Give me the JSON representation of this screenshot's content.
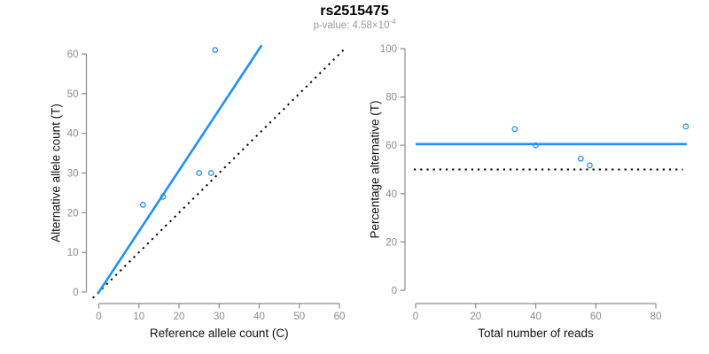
{
  "header": {
    "title": "rs2515475",
    "pvalue_label": "p-value: 4.58×10",
    "pvalue_exponent": "-4"
  },
  "colors": {
    "accent_blue": "#1E90FF",
    "dotted_black": "#000000",
    "axis_gray": "#8C8C8C",
    "tick_label_gray": "#8C8C8C",
    "axis_title_color": "#111111",
    "subtitle_gray": "#9B9B9B",
    "background": "#FFFFFF"
  },
  "chart_data": [
    {
      "type": "scatter",
      "title": "",
      "xlabel": "Reference allele count (C)",
      "ylabel": "Alternative allele count (T)",
      "xlim": [
        0,
        60
      ],
      "ylim": [
        0,
        61
      ],
      "xticks": [
        0,
        10,
        20,
        30,
        40,
        50,
        60
      ],
      "yticks": [
        0,
        10,
        20,
        30,
        40,
        50,
        60
      ],
      "grid": false,
      "legend": null,
      "points": [
        {
          "x": 11,
          "y": 22
        },
        {
          "x": 16,
          "y": 24
        },
        {
          "x": 25,
          "y": 30
        },
        {
          "x": 28,
          "y": 30
        },
        {
          "x": 29,
          "y": 61
        }
      ],
      "lines": [
        {
          "name": "identity-line",
          "slope": 1,
          "intercept": 0,
          "style": "dotted",
          "color": "#000000",
          "x_range": [
            -1.5,
            61
          ]
        },
        {
          "name": "fit-line",
          "slope": 1.532,
          "intercept": 0,
          "style": "solid",
          "color": "#1E90FF",
          "x_range": [
            -0.3,
            40.6
          ]
        }
      ]
    },
    {
      "type": "scatter",
      "title": "",
      "xlabel": "Total number of reads",
      "ylabel": "Percentage alternative (T)",
      "xlim": [
        0,
        90
      ],
      "ylim": [
        0,
        100
      ],
      "xticks": [
        0,
        20,
        40,
        60,
        80
      ],
      "yticks": [
        0,
        20,
        40,
        60,
        80,
        100
      ],
      "grid": false,
      "legend": null,
      "points": [
        {
          "x": 33,
          "y": 66.7
        },
        {
          "x": 40,
          "y": 60
        },
        {
          "x": 55,
          "y": 54.5
        },
        {
          "x": 58,
          "y": 51.7
        },
        {
          "x": 90,
          "y": 67.8
        }
      ],
      "lines": [
        {
          "name": "null-line",
          "slope": 0,
          "intercept": 50,
          "style": "dotted",
          "color": "#000000",
          "x_range": [
            -0.6,
            89
          ]
        },
        {
          "name": "fit-line",
          "slope": 0,
          "intercept": 60.5,
          "style": "solid",
          "color": "#1E90FF",
          "x_range": [
            0,
            90.3
          ]
        }
      ]
    }
  ]
}
